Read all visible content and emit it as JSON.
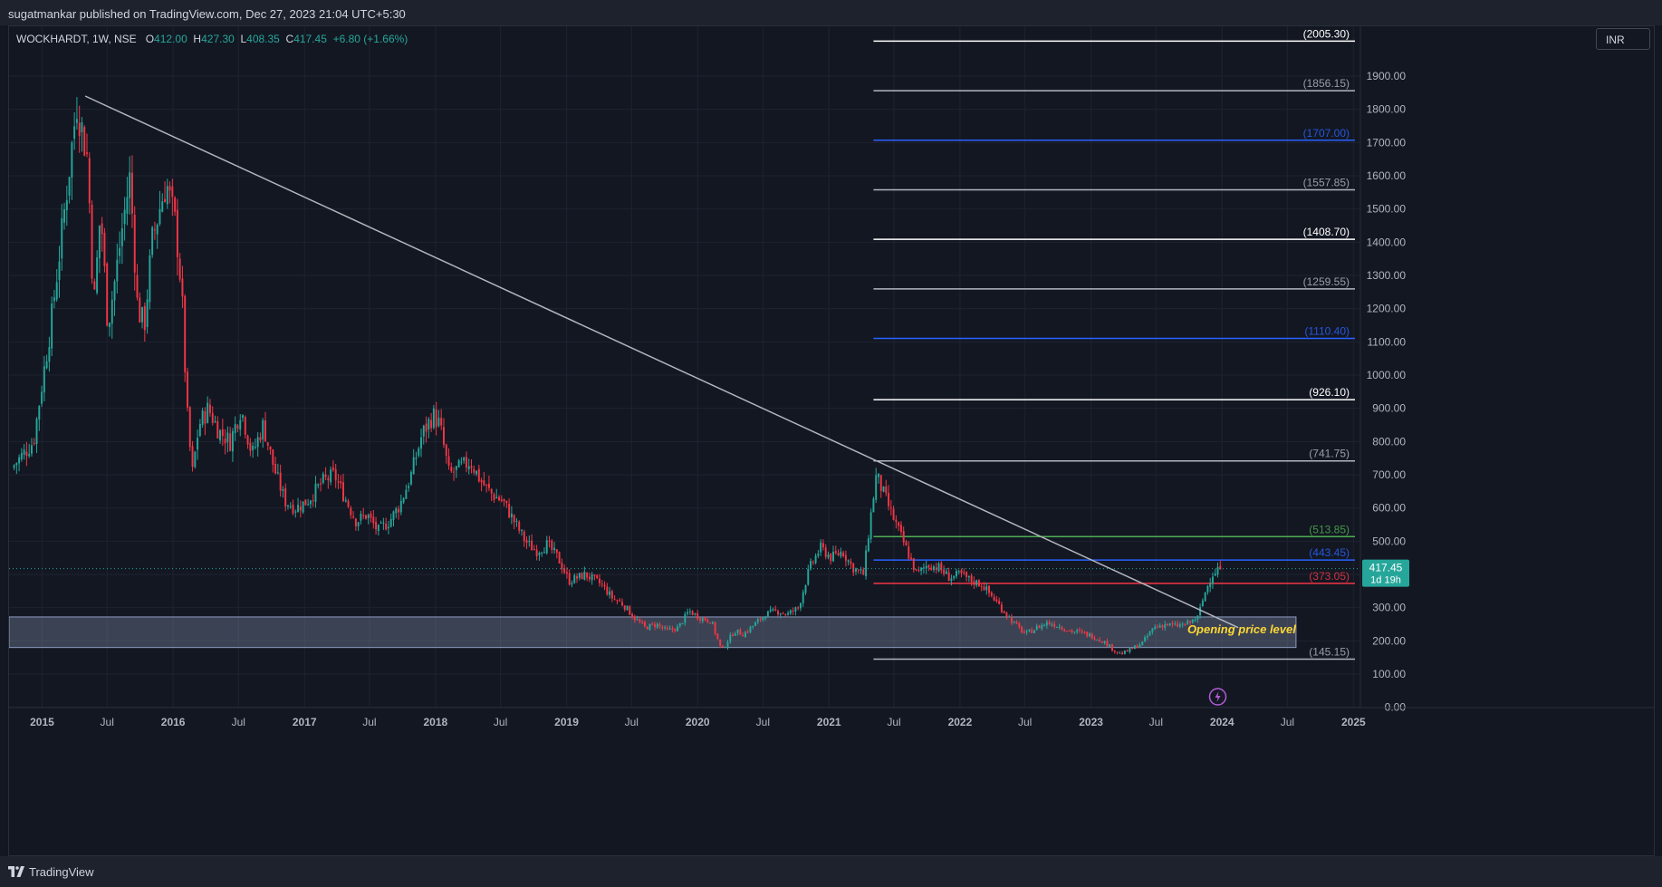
{
  "header": {
    "published_text": "sugatmankar published on TradingView.com, Dec 27, 2023 21:04 UTC+5:30"
  },
  "legend": {
    "symbol": "WOCKHARDT, 1W, NSE",
    "open_label": "O",
    "open": "412.00",
    "high_label": "H",
    "high": "427.30",
    "low_label": "L",
    "low": "408.35",
    "close_label": "C",
    "close": "417.45",
    "change": "+6.80 (+1.66%)"
  },
  "currency": "INR",
  "footer": {
    "brand": "TradingView"
  },
  "colors": {
    "background": "#131722",
    "up": "#26a69a",
    "down": "#f23645",
    "trendline": "#b2b5be",
    "zone": "#b2c3e6"
  },
  "chart_data": {
    "type": "candlestick",
    "interval": "1W",
    "ylim": [
      -50,
      2050
    ],
    "y_ticks": [
      "0.00",
      "100.00",
      "200.00",
      "300.00",
      "400.00",
      "500.00",
      "600.00",
      "700.00",
      "800.00",
      "900.00",
      "1000.00",
      "1100.00",
      "1200.00",
      "1300.00",
      "1400.00",
      "1500.00",
      "1600.00",
      "1700.00",
      "1800.00",
      "1900.00"
    ],
    "x_ticks": [
      {
        "label": "2015",
        "date": "2015-01-01",
        "bold": true
      },
      {
        "label": "Jul",
        "date": "2015-07-01",
        "bold": false
      },
      {
        "label": "2016",
        "date": "2016-01-01",
        "bold": true
      },
      {
        "label": "Jul",
        "date": "2016-07-01",
        "bold": false
      },
      {
        "label": "2017",
        "date": "2017-01-01",
        "bold": true
      },
      {
        "label": "Jul",
        "date": "2017-07-01",
        "bold": false
      },
      {
        "label": "2018",
        "date": "2018-01-01",
        "bold": true
      },
      {
        "label": "Jul",
        "date": "2018-07-01",
        "bold": false
      },
      {
        "label": "2019",
        "date": "2019-01-01",
        "bold": true
      },
      {
        "label": "Jul",
        "date": "2019-07-01",
        "bold": false
      },
      {
        "label": "2020",
        "date": "2020-01-01",
        "bold": true
      },
      {
        "label": "Jul",
        "date": "2020-07-01",
        "bold": false
      },
      {
        "label": "2021",
        "date": "2021-01-01",
        "bold": true
      },
      {
        "label": "Jul",
        "date": "2021-07-01",
        "bold": false
      },
      {
        "label": "2022",
        "date": "2022-01-01",
        "bold": true
      },
      {
        "label": "Jul",
        "date": "2022-07-01",
        "bold": false
      },
      {
        "label": "2023",
        "date": "2023-01-01",
        "bold": true
      },
      {
        "label": "Jul",
        "date": "2023-07-01",
        "bold": false
      },
      {
        "label": "2024",
        "date": "2024-01-01",
        "bold": true
      },
      {
        "label": "Jul",
        "date": "2024-07-01",
        "bold": false
      },
      {
        "label": "2025",
        "date": "2025-01-01",
        "bold": true
      }
    ],
    "price_path": [
      [
        "2014-10-15",
        720
      ],
      [
        "2014-12-15",
        800
      ],
      [
        "2015-02-01",
        1150
      ],
      [
        "2015-03-01",
        1400
      ],
      [
        "2015-04-15",
        1820
      ],
      [
        "2015-05-15",
        1650
      ],
      [
        "2015-06-01",
        1200
      ],
      [
        "2015-06-20",
        1500
      ],
      [
        "2015-07-10",
        1150
      ],
      [
        "2015-08-01",
        1300
      ],
      [
        "2015-08-20",
        1450
      ],
      [
        "2015-09-10",
        1600
      ],
      [
        "2015-10-01",
        1200
      ],
      [
        "2015-10-20",
        1150
      ],
      [
        "2015-11-10",
        1400
      ],
      [
        "2015-12-01",
        1500
      ],
      [
        "2015-12-20",
        1580
      ],
      [
        "2016-01-15",
        1450
      ],
      [
        "2016-02-01",
        1250
      ],
      [
        "2016-02-15",
        900
      ],
      [
        "2016-03-01",
        700
      ],
      [
        "2016-03-20",
        850
      ],
      [
        "2016-04-15",
        900
      ],
      [
        "2016-05-15",
        830
      ],
      [
        "2016-06-15",
        800
      ],
      [
        "2016-07-15",
        900
      ],
      [
        "2016-08-15",
        760
      ],
      [
        "2016-09-15",
        850
      ],
      [
        "2016-10-15",
        720
      ],
      [
        "2016-11-15",
        620
      ],
      [
        "2016-12-15",
        600
      ],
      [
        "2017-01-15",
        620
      ],
      [
        "2017-03-01",
        680
      ],
      [
        "2017-04-01",
        700
      ],
      [
        "2017-05-01",
        630
      ],
      [
        "2017-06-01",
        560
      ],
      [
        "2017-07-01",
        580
      ],
      [
        "2017-08-01",
        530
      ],
      [
        "2017-09-01",
        560
      ],
      [
        "2017-10-01",
        610
      ],
      [
        "2017-11-01",
        700
      ],
      [
        "2017-12-01",
        820
      ],
      [
        "2018-01-01",
        880
      ],
      [
        "2018-01-20",
        850
      ],
      [
        "2018-02-15",
        700
      ],
      [
        "2018-03-15",
        720
      ],
      [
        "2018-04-15",
        740
      ],
      [
        "2018-05-15",
        680
      ],
      [
        "2018-06-15",
        640
      ],
      [
        "2018-07-15",
        620
      ],
      [
        "2018-08-15",
        560
      ],
      [
        "2018-09-15",
        500
      ],
      [
        "2018-10-15",
        470
      ],
      [
        "2018-11-15",
        490
      ],
      [
        "2018-12-15",
        450
      ],
      [
        "2019-01-15",
        380
      ],
      [
        "2019-03-01",
        400
      ],
      [
        "2019-04-15",
        370
      ],
      [
        "2019-05-15",
        330
      ],
      [
        "2019-06-15",
        310
      ],
      [
        "2019-07-15",
        270
      ],
      [
        "2019-08-15",
        240
      ],
      [
        "2019-09-15",
        250
      ],
      [
        "2019-10-15",
        230
      ],
      [
        "2019-11-15",
        240
      ],
      [
        "2019-12-15",
        290
      ],
      [
        "2020-01-15",
        270
      ],
      [
        "2020-02-15",
        260
      ],
      [
        "2020-03-15",
        170
      ],
      [
        "2020-04-01",
        200
      ],
      [
        "2020-04-20",
        230
      ],
      [
        "2020-05-15",
        220
      ],
      [
        "2020-06-15",
        250
      ],
      [
        "2020-07-15",
        280
      ],
      [
        "2020-08-15",
        290
      ],
      [
        "2020-09-15",
        280
      ],
      [
        "2020-10-15",
        300
      ],
      [
        "2020-11-15",
        420
      ],
      [
        "2020-12-15",
        480
      ],
      [
        "2021-01-15",
        450
      ],
      [
        "2021-02-15",
        470
      ],
      [
        "2021-03-15",
        420
      ],
      [
        "2021-04-15",
        400
      ],
      [
        "2021-05-01",
        550
      ],
      [
        "2021-05-20",
        700
      ],
      [
        "2021-06-10",
        640
      ],
      [
        "2021-07-10",
        560
      ],
      [
        "2021-08-10",
        480
      ],
      [
        "2021-09-10",
        400
      ],
      [
        "2021-10-10",
        430
      ],
      [
        "2021-11-10",
        420
      ],
      [
        "2021-12-10",
        390
      ],
      [
        "2022-01-10",
        400
      ],
      [
        "2022-02-10",
        380
      ],
      [
        "2022-03-10",
        370
      ],
      [
        "2022-04-10",
        330
      ],
      [
        "2022-05-10",
        290
      ],
      [
        "2022-06-10",
        250
      ],
      [
        "2022-07-10",
        220
      ],
      [
        "2022-08-10",
        240
      ],
      [
        "2022-09-10",
        255
      ],
      [
        "2022-10-10",
        245
      ],
      [
        "2022-11-10",
        230
      ],
      [
        "2022-12-10",
        225
      ],
      [
        "2023-01-10",
        215
      ],
      [
        "2023-02-10",
        200
      ],
      [
        "2023-03-10",
        175
      ],
      [
        "2023-04-01",
        160
      ],
      [
        "2023-05-01",
        175
      ],
      [
        "2023-06-01",
        195
      ],
      [
        "2023-07-01",
        240
      ],
      [
        "2023-08-01",
        250
      ],
      [
        "2023-09-01",
        245
      ],
      [
        "2023-10-01",
        250
      ],
      [
        "2023-11-01",
        270
      ],
      [
        "2023-11-20",
        340
      ],
      [
        "2023-12-10",
        400
      ],
      [
        "2023-12-27",
        417
      ]
    ],
    "trendline": {
      "start": [
        "2015-05-01",
        1840
      ],
      "end": [
        "2024-02-15",
        240
      ],
      "color": "#b2b5be"
    },
    "zone": {
      "start": "2014-10-01",
      "end": "2024-07-25",
      "from": 180,
      "to": 272,
      "label": "Opening price level"
    },
    "fib_start": "2021-05-05",
    "fib_levels": [
      {
        "value": 2005.3,
        "label": "(2005.30)",
        "color": "#ffffff"
      },
      {
        "value": 1856.15,
        "label": "(1856.15)",
        "color": "#b2b5be"
      },
      {
        "value": 1707.0,
        "label": "(1707.00)",
        "color": "#2962ff"
      },
      {
        "value": 1557.85,
        "label": "(1557.85)",
        "color": "#b2b5be"
      },
      {
        "value": 1408.7,
        "label": "(1408.70)",
        "color": "#ffffff"
      },
      {
        "value": 1259.55,
        "label": "(1259.55)",
        "color": "#b2b5be"
      },
      {
        "value": 1110.4,
        "label": "(1110.40)",
        "color": "#2962ff"
      },
      {
        "value": 926.1,
        "label": "(926.10)",
        "color": "#ffffff"
      },
      {
        "value": 741.75,
        "label": "(741.75)",
        "color": "#b2b5be"
      },
      {
        "value": 513.85,
        "label": "(513.85)",
        "color": "#4caf50"
      },
      {
        "value": 443.45,
        "label": "(443.45)",
        "color": "#2962ff"
      },
      {
        "value": 373.05,
        "label": "(373.05)",
        "color": "#f23645"
      },
      {
        "value": 145.15,
        "label": "(145.15)",
        "color": "#b2b5be"
      }
    ],
    "last_price": {
      "value": 417.45,
      "label": "417.45",
      "countdown": "1d 19h"
    }
  }
}
